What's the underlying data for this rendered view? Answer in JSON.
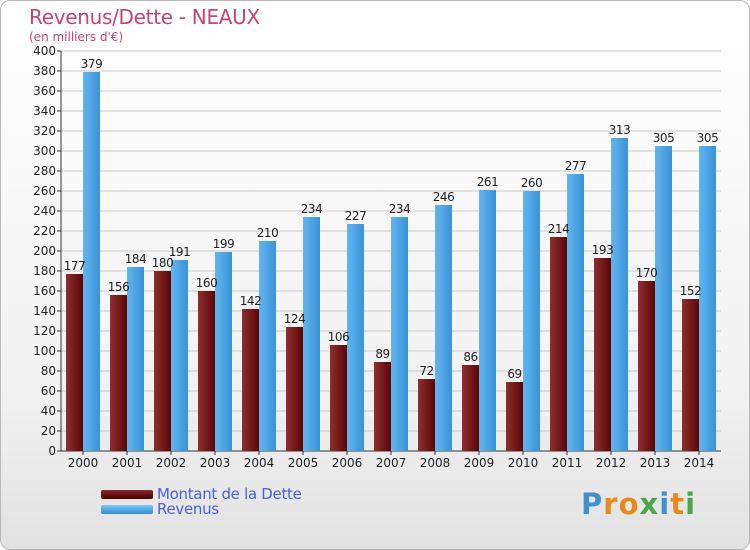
{
  "title": "Revenus/Dette - NEAUX",
  "subtitle": "(en milliers d'€)",
  "logo_text": "Proxiti",
  "chart_data": {
    "type": "bar",
    "categories": [
      "2000",
      "2001",
      "2002",
      "2003",
      "2004",
      "2005",
      "2006",
      "2007",
      "2008",
      "2009",
      "2010",
      "2011",
      "2012",
      "2013",
      "2014"
    ],
    "series": [
      {
        "name": "Montant de la Dette",
        "values": [
          177,
          156,
          180,
          160,
          142,
          124,
          106,
          89,
          72,
          86,
          69,
          214,
          193,
          170,
          152
        ],
        "color": "#6b0f0f"
      },
      {
        "name": "Revenus",
        "values": [
          379,
          184,
          191,
          199,
          210,
          234,
          227,
          234,
          246,
          261,
          260,
          277,
          313,
          305,
          305
        ],
        "color": "#4aa3e3"
      }
    ],
    "ylim": [
      0,
      400
    ],
    "yticks": [
      0,
      20,
      40,
      60,
      80,
      100,
      120,
      140,
      160,
      180,
      200,
      220,
      240,
      260,
      280,
      300,
      320,
      340,
      360,
      380,
      400
    ],
    "grid": true,
    "legend": "bottom-left"
  }
}
